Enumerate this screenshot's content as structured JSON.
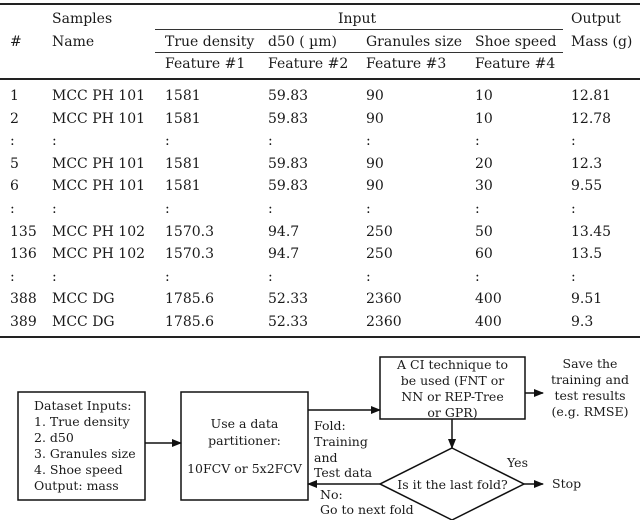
{
  "table": {
    "header": {
      "hash": "#",
      "samples": "Samples",
      "name": "Name",
      "input": "Input",
      "output": "Output",
      "mass": "Mass (g)",
      "columns": [
        "True density",
        "d50 ( µm)",
        "Granules size",
        "Shoe speed"
      ],
      "features": [
        "Feature #1",
        "Feature #2",
        "Feature #3",
        "Feature #4"
      ]
    },
    "rows": [
      [
        "1",
        "MCC PH 101",
        "1581",
        "59.83",
        "90",
        "10",
        "12.81"
      ],
      [
        "2",
        "MCC PH 101",
        "1581",
        "59.83",
        "90",
        "10",
        "12.78"
      ],
      [
        ":",
        ":",
        ":",
        ":",
        ":",
        ":",
        ":"
      ],
      [
        "5",
        "MCC PH 101",
        "1581",
        "59.83",
        "90",
        "20",
        "12.3"
      ],
      [
        "6",
        "MCC PH 101",
        "1581",
        "59.83",
        "90",
        "30",
        "9.55"
      ],
      [
        ":",
        ":",
        ":",
        ":",
        ":",
        ":",
        ":"
      ],
      [
        "135",
        "MCC PH 102",
        "1570.3",
        "94.7",
        "250",
        "50",
        "13.45"
      ],
      [
        "136",
        "MCC PH 102",
        "1570.3",
        "94.7",
        "250",
        "60",
        "13.5"
      ],
      [
        ":",
        ":",
        ":",
        ":",
        ":",
        ":",
        ":"
      ],
      [
        "388",
        "MCC DG",
        "1785.6",
        "52.33",
        "2360",
        "400",
        "9.51"
      ],
      [
        "389",
        "MCC DG",
        "1785.6",
        "52.33",
        "2360",
        "400",
        "9.3"
      ]
    ]
  },
  "diagram": {
    "dataset_box": [
      "Dataset Inputs:",
      "1.  True density",
      "2.  d50",
      "3.  Granules size",
      "4.  Shoe speed",
      "Output:  mass"
    ],
    "partitioner_box": [
      "Use a data",
      "partitioner:",
      "",
      "10FCV or 5x2FCV"
    ],
    "ci_box": [
      "A CI technique to",
      "be used (FNT or",
      "NN or REP-Tree",
      "or GPR)"
    ],
    "save_text": [
      "Save the",
      "training and",
      "test results",
      "(e.g. RMSE)"
    ],
    "fold_label": [
      "Fold:",
      "Training",
      "and",
      "Test data"
    ],
    "decision": "Is it the last fold?",
    "yes_label": "Yes",
    "stop_label": "Stop",
    "no_label": [
      "No:",
      "Go to next fold"
    ]
  }
}
